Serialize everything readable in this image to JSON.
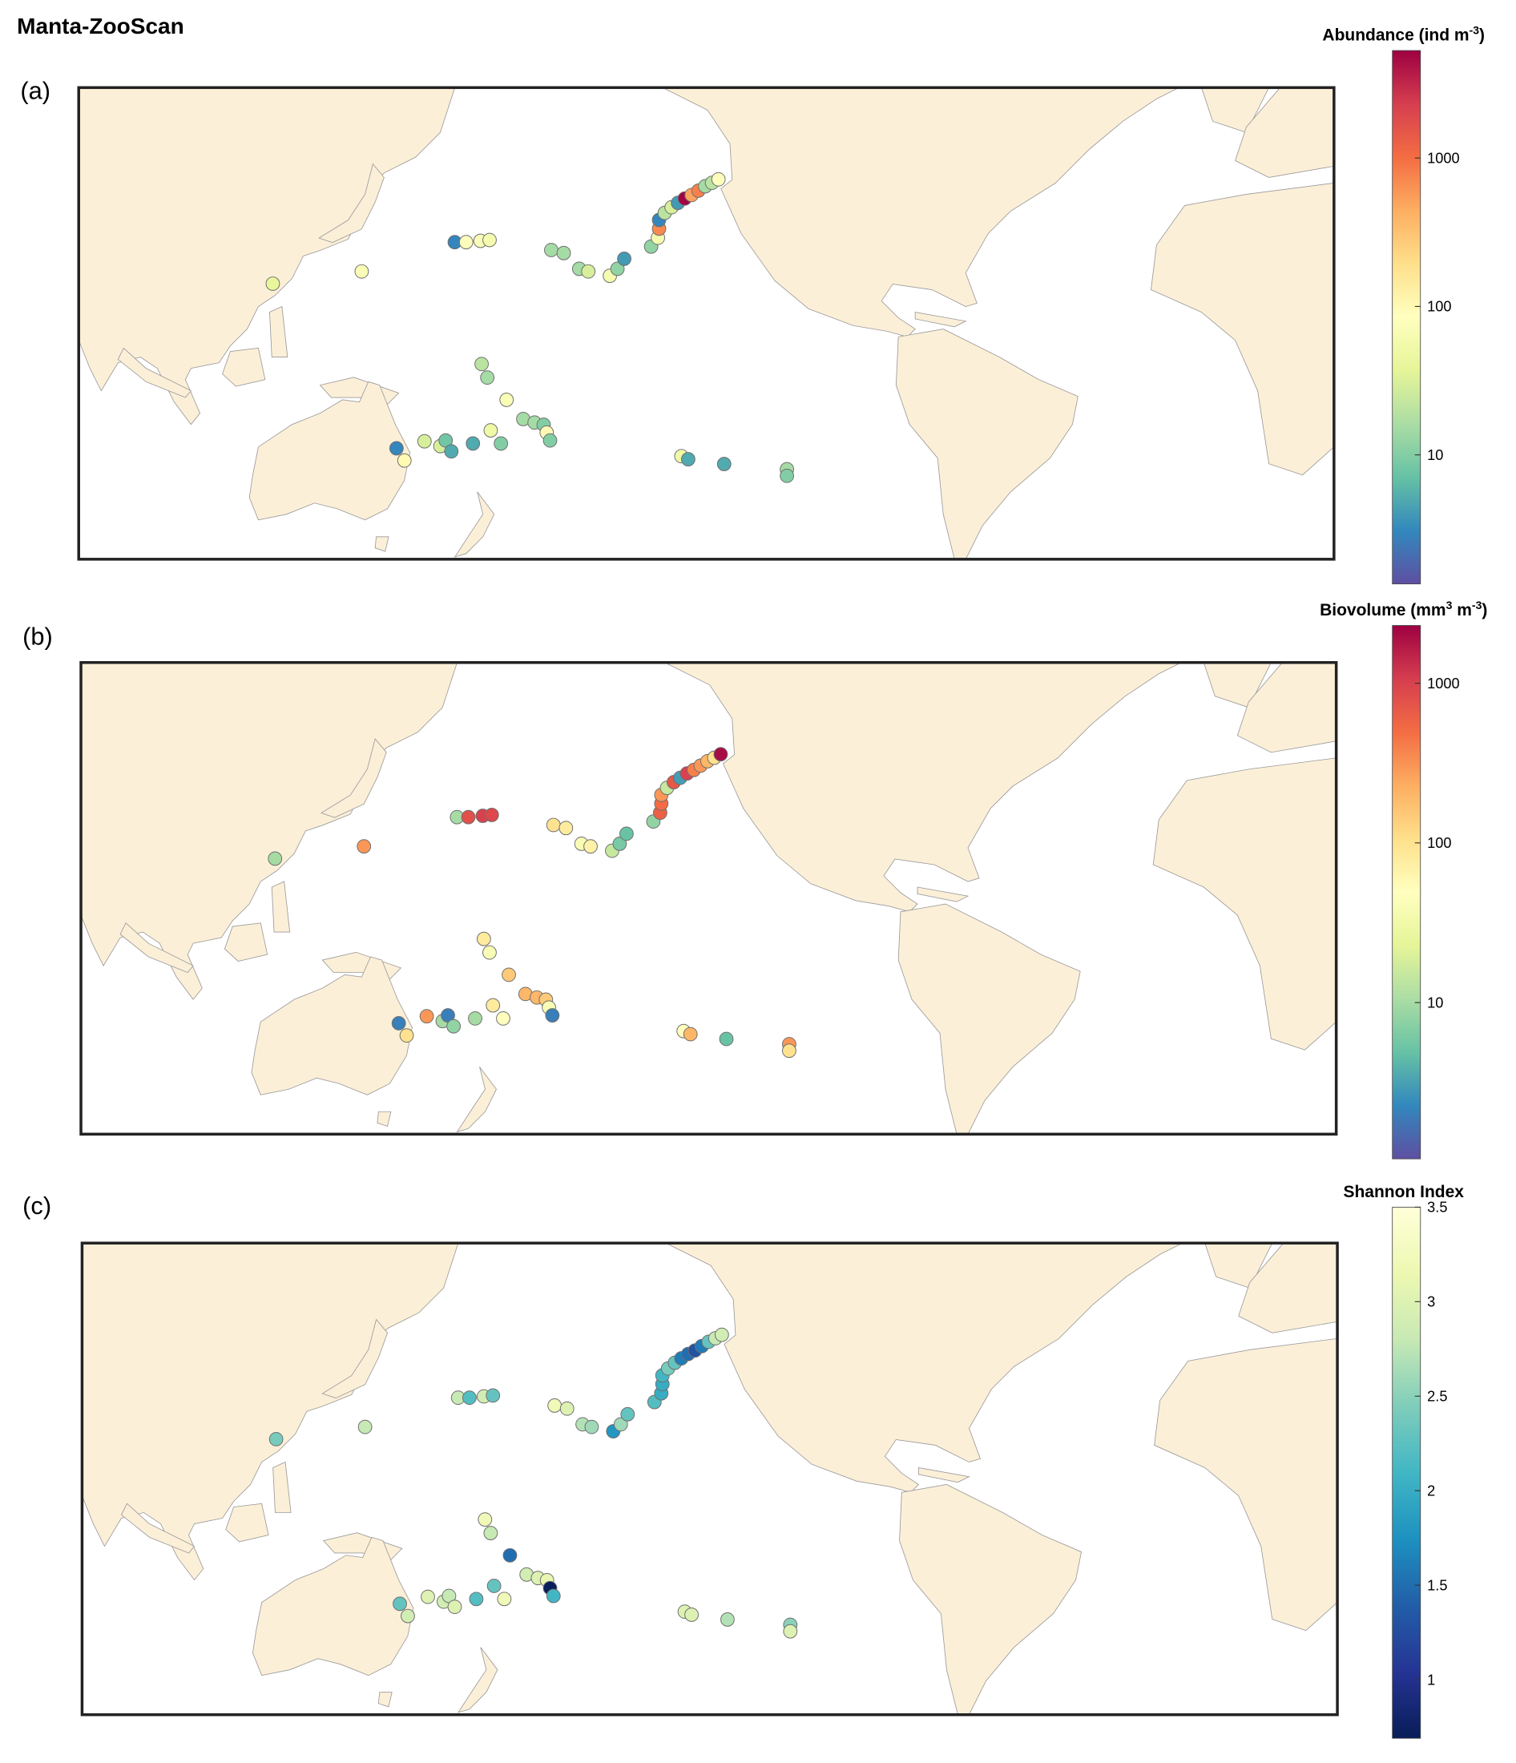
{
  "title": "Manta-ZooScan",
  "lonlim": [
    68.9,
    400.7
  ],
  "latlim": [
    -48,
    60
  ],
  "stations": [
    {
      "lon": 120.2,
      "lat": 15.1,
      "abundance": 40,
      "biovolume": 10,
      "shannon": 2.4
    },
    {
      "lon": 143.7,
      "lat": 17.9,
      "abundance": 70,
      "biovolume": 300,
      "shannon": 2.8
    },
    {
      "lon": 168.3,
      "lat": 24.6,
      "abundance": 3,
      "biovolume": 10,
      "shannon": 2.8
    },
    {
      "lon": 171.3,
      "lat": 24.6,
      "abundance": 80,
      "biovolume": 800,
      "shannon": 2.2
    },
    {
      "lon": 175.1,
      "lat": 24.9,
      "abundance": 70,
      "biovolume": 1000,
      "shannon": 2.9
    },
    {
      "lon": 177.5,
      "lat": 25.1,
      "abundance": 60,
      "biovolume": 900,
      "shannon": 2.3
    },
    {
      "lon": 193.8,
      "lat": 22.8,
      "abundance": 15,
      "biovolume": 100,
      "shannon": 3.2
    },
    {
      "lon": 197.1,
      "lat": 22.1,
      "abundance": 15,
      "biovolume": 80,
      "shannon": 3.0
    },
    {
      "lon": 201.2,
      "lat": 18.5,
      "abundance": 15,
      "biovolume": 40,
      "shannon": 2.7
    },
    {
      "lon": 203.6,
      "lat": 17.9,
      "abundance": 30,
      "biovolume": 70,
      "shannon": 2.6
    },
    {
      "lon": 209.3,
      "lat": 16.9,
      "abundance": 60,
      "biovolume": 15,
      "shannon": 1.8
    },
    {
      "lon": 211.3,
      "lat": 18.5,
      "abundance": 12,
      "biovolume": 6,
      "shannon": 2.6
    },
    {
      "lon": 213.1,
      "lat": 20.8,
      "abundance": 4,
      "biovolume": 5,
      "shannon": 2.3
    },
    {
      "lon": 220.2,
      "lat": 23.6,
      "abundance": 12,
      "biovolume": 8,
      "shannon": 2.2
    },
    {
      "lon": 222.0,
      "lat": 25.6,
      "abundance": 60,
      "biovolume": 600,
      "shannon": 2.0
    },
    {
      "lon": 222.3,
      "lat": 27.7,
      "abundance": 700,
      "biovolume": 500,
      "shannon": 2.0
    },
    {
      "lon": 222.3,
      "lat": 29.7,
      "abundance": 3,
      "biovolume": 300,
      "shannon": 2.1
    },
    {
      "lon": 223.8,
      "lat": 31.3,
      "abundance": 20,
      "biovolume": 15,
      "shannon": 2.4
    },
    {
      "lon": 225.6,
      "lat": 32.6,
      "abundance": 30,
      "biovolume": 700,
      "shannon": 2.3
    },
    {
      "lon": 227.3,
      "lat": 33.6,
      "abundance": 4,
      "biovolume": 3,
      "shannon": 1.6
    },
    {
      "lon": 229.1,
      "lat": 34.6,
      "abundance": 5000,
      "biovolume": 1000,
      "shannon": 1.5
    },
    {
      "lon": 230.9,
      "lat": 35.4,
      "abundance": 500,
      "biovolume": 400,
      "shannon": 1.3
    },
    {
      "lon": 232.7,
      "lat": 36.4,
      "abundance": 800,
      "biovolume": 300,
      "shannon": 1.6
    },
    {
      "lon": 234.5,
      "lat": 37.4,
      "abundance": 15,
      "biovolume": 200,
      "shannon": 2.3
    },
    {
      "lon": 236.3,
      "lat": 38.2,
      "abundance": 20,
      "biovolume": 100,
      "shannon": 2.8
    },
    {
      "lon": 238.0,
      "lat": 39.0,
      "abundance": 80,
      "biovolume": 2000,
      "shannon": 2.9
    },
    {
      "lon": 152.9,
      "lat": -22.6,
      "abundance": 3,
      "biovolume": 2,
      "shannon": 2.3
    },
    {
      "lon": 155.0,
      "lat": -25.4,
      "abundance": 100,
      "biovolume": 100,
      "shannon": 2.9
    },
    {
      "lon": 160.3,
      "lat": -21.0,
      "abundance": 30,
      "biovolume": 300,
      "shannon": 3.0
    },
    {
      "lon": 164.5,
      "lat": -22.1,
      "abundance": 30,
      "biovolume": 10,
      "shannon": 2.9
    },
    {
      "lon": 165.9,
      "lat": -20.8,
      "abundance": 8,
      "biovolume": 2,
      "shannon": 2.8
    },
    {
      "lon": 167.4,
      "lat": -23.3,
      "abundance": 5,
      "biovolume": 8,
      "shannon": 3.0
    },
    {
      "lon": 173.1,
      "lat": -21.5,
      "abundance": 5,
      "biovolume": 10,
      "shannon": 2.2
    },
    {
      "lon": 177.8,
      "lat": -18.5,
      "abundance": 50,
      "biovolume": 80,
      "shannon": 2.3
    },
    {
      "lon": 180.5,
      "lat": -21.5,
      "abundance": 10,
      "biovolume": 50,
      "shannon": 3.2
    },
    {
      "lon": 175.4,
      "lat": -3.3,
      "abundance": 20,
      "biovolume": 80,
      "shannon": 3.2
    },
    {
      "lon": 176.9,
      "lat": -6.4,
      "abundance": 15,
      "biovolume": 40,
      "shannon": 2.8
    },
    {
      "lon": 182.0,
      "lat": -11.5,
      "abundance": 70,
      "biovolume": 150,
      "shannon": 1.5
    },
    {
      "lon": 186.4,
      "lat": -15.9,
      "abundance": 15,
      "biovolume": 200,
      "shannon": 2.9
    },
    {
      "lon": 189.4,
      "lat": -16.7,
      "abundance": 15,
      "biovolume": 200,
      "shannon": 3.0
    },
    {
      "lon": 191.8,
      "lat": -17.2,
      "abundance": 10,
      "biovolume": 150,
      "shannon": 3.1
    },
    {
      "lon": 192.6,
      "lat": -19.0,
      "abundance": 100,
      "biovolume": 40,
      "shannon": 0.7
    },
    {
      "lon": 193.5,
      "lat": -20.8,
      "abundance": 10,
      "biovolume": 2,
      "shannon": 2.1
    },
    {
      "lon": 228.2,
      "lat": -24.4,
      "abundance": 50,
      "biovolume": 50,
      "shannon": 3.0
    },
    {
      "lon": 230.0,
      "lat": -25.1,
      "abundance": 5,
      "biovolume": 200,
      "shannon": 3.0
    },
    {
      "lon": 239.5,
      "lat": -26.2,
      "abundance": 5,
      "biovolume": 5,
      "shannon": 2.7
    },
    {
      "lon": 256.1,
      "lat": -27.4,
      "abundance": 15,
      "biovolume": 300,
      "shannon": 2.5
    },
    {
      "lon": 256.1,
      "lat": -28.9,
      "abundance": 10,
      "biovolume": 100,
      "shannon": 3.0
    }
  ],
  "panels": [
    {
      "label": "(a)",
      "variable": "abundance",
      "colorbar": {
        "title": "Abundance (ind m",
        "title_sup": "-3",
        "title_end": ")",
        "log": true,
        "lim": [
          1.35,
          5300
        ],
        "ticks": [
          10,
          100,
          1000
        ],
        "colormap": [
          "#5e4fa2",
          "#3288bd",
          "#66c2a5",
          "#abdda4",
          "#e6f598",
          "#ffffbf",
          "#fee08b",
          "#fdae61",
          "#f46d43",
          "#d53e4f",
          "#9e0142"
        ]
      }
    },
    {
      "label": "(b)",
      "variable": "biovolume",
      "colorbar": {
        "title": "Biovolume (mm",
        "title_sup": "3",
        "title_end": " m",
        "title_sup2": "-3",
        "title_end2": ")",
        "log": true,
        "lim": [
          1.05,
          2300
        ],
        "ticks": [
          10,
          100,
          1000
        ],
        "colormap": [
          "#5e4fa2",
          "#3288bd",
          "#66c2a5",
          "#abdda4",
          "#e6f598",
          "#ffffbf",
          "#fee08b",
          "#fdae61",
          "#f46d43",
          "#d53e4f",
          "#9e0142"
        ]
      }
    },
    {
      "label": "(c)",
      "variable": "shannon",
      "colorbar": {
        "title": "Shannon Index",
        "log": false,
        "lim": [
          0.69,
          3.5
        ],
        "ticks": [
          1,
          1.5,
          2,
          2.5,
          3,
          3.5
        ],
        "colormap": [
          "#081d58",
          "#253494",
          "#225ea8",
          "#1d91c0",
          "#41b6c4",
          "#7fcdbb",
          "#c7e9b4",
          "#edf8b1",
          "#ffffd9"
        ]
      }
    }
  ]
}
